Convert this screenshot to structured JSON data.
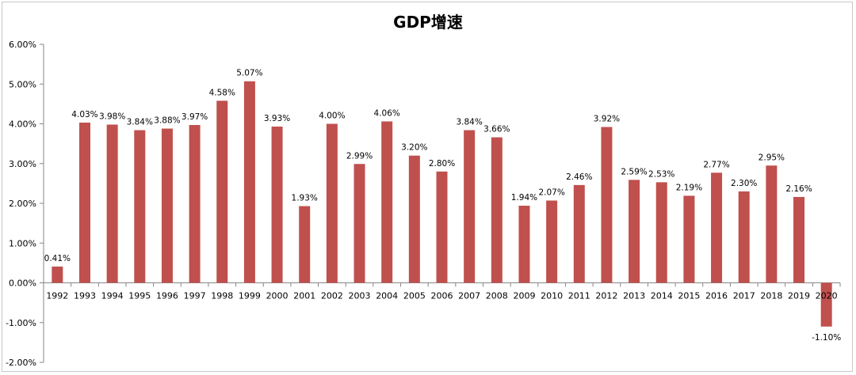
{
  "chart_data": {
    "type": "bar",
    "title": "GDP增速",
    "categories": [
      "1992",
      "1993",
      "1994",
      "1995",
      "1996",
      "1997",
      "1998",
      "1999",
      "2000",
      "2001",
      "2002",
      "2003",
      "2004",
      "2005",
      "2006",
      "2007",
      "2008",
      "2009",
      "2010",
      "2011",
      "2012",
      "2013",
      "2014",
      "2015",
      "2016",
      "2017",
      "2018",
      "2019",
      "2020"
    ],
    "values": [
      0.41,
      4.03,
      3.98,
      3.84,
      3.88,
      3.97,
      4.58,
      5.07,
      3.93,
      1.93,
      4.0,
      2.99,
      4.06,
      3.2,
      2.8,
      3.84,
      3.66,
      1.94,
      2.07,
      2.46,
      3.92,
      2.59,
      2.53,
      2.19,
      2.77,
      2.3,
      2.95,
      2.16,
      -1.1
    ],
    "data_labels": [
      "0.41%",
      "4.03%",
      "3.98%",
      "3.84%",
      "3.88%",
      "3.97%",
      "4.58%",
      "5.07%",
      "3.93%",
      "1.93%",
      "4.00%",
      "2.99%",
      "4.06%",
      "3.20%",
      "2.80%",
      "3.84%",
      "3.66%",
      "1.94%",
      "2.07%",
      "2.46%",
      "3.92%",
      "2.59%",
      "2.53%",
      "2.19%",
      "2.77%",
      "2.30%",
      "2.95%",
      "2.16%",
      "-1.10%"
    ],
    "yticks": [
      6,
      5,
      4,
      3,
      2,
      1,
      0,
      -1,
      -2
    ],
    "ytick_labels": [
      "6.00%",
      "5.00%",
      "4.00%",
      "3.00%",
      "2.00%",
      "1.00%",
      "0.00%",
      "-1.00%",
      "-2.00%"
    ],
    "ylim": [
      -2,
      6
    ],
    "xlabel": "",
    "ylabel": "",
    "grid": false,
    "legend": "none",
    "bar_color": "#c0504d",
    "axis_color": "#868686"
  }
}
